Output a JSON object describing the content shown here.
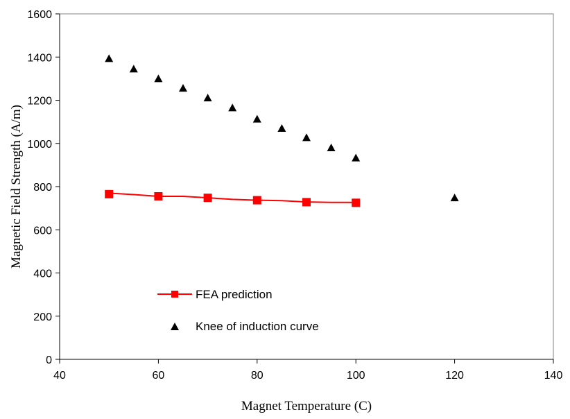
{
  "chart_data": {
    "type": "line",
    "title": "",
    "xlabel": "Magnet Temperature (C)",
    "ylabel": "Magnetic Field Strength (A/m)",
    "xlim": [
      40,
      140
    ],
    "ylim": [
      0,
      1600
    ],
    "xticks": [
      40,
      60,
      80,
      100,
      120,
      140
    ],
    "yticks": [
      0,
      200,
      400,
      600,
      800,
      1000,
      1200,
      1400,
      1600
    ],
    "grid": false,
    "legend_position": "lower-left",
    "series": [
      {
        "name": "FEA prediction",
        "style": "line-square",
        "color": "#ff0000",
        "line_x": [
          50,
          55,
          60,
          65,
          70,
          75,
          80,
          85,
          90,
          95,
          100
        ],
        "line_y": [
          770,
          763,
          755,
          755,
          748,
          741,
          737,
          735,
          729,
          727,
          727
        ],
        "marker_x": [
          50,
          60,
          70,
          80,
          90,
          100
        ],
        "marker_y": [
          765,
          755,
          748,
          737,
          728,
          725
        ]
      },
      {
        "name": "Knee of induction curve",
        "style": "triangle-marker",
        "color": "#000000",
        "x": [
          50,
          55,
          60,
          65,
          70,
          75,
          80,
          85,
          90,
          95,
          100,
          120
        ],
        "y": [
          1393,
          1345,
          1300,
          1256,
          1211,
          1165,
          1113,
          1070,
          1027,
          980,
          933,
          748
        ]
      }
    ]
  }
}
